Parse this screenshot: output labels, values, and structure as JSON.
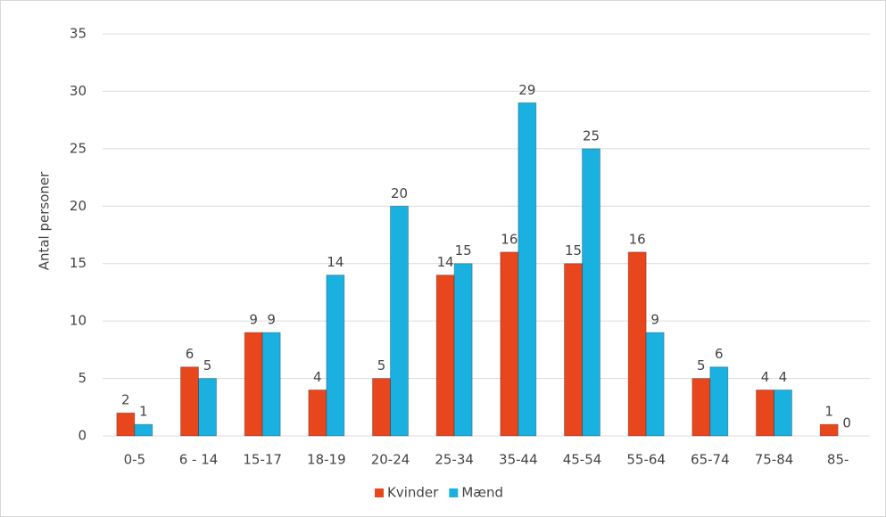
{
  "chart_data": {
    "type": "bar",
    "y_label": "Antal personer",
    "categories": [
      "0-5",
      "6 - 14",
      "15-17",
      "18-19",
      "20-24",
      "25-34",
      "35-44",
      "45-54",
      "55-64",
      "65-74",
      "75-84",
      "85-"
    ],
    "series": [
      {
        "name": "Kvinder",
        "color": "#e8461c",
        "values": [
          2,
          6,
          9,
          4,
          5,
          14,
          16,
          15,
          16,
          5,
          4,
          1
        ]
      },
      {
        "name": "Mænd",
        "color": "#1ab0e0",
        "values": [
          1,
          5,
          9,
          14,
          20,
          15,
          29,
          25,
          9,
          6,
          4,
          0
        ]
      }
    ],
    "ylim": [
      0,
      35
    ],
    "yticks": [
      0,
      5,
      10,
      15,
      20,
      25,
      30,
      35
    ],
    "grid": true,
    "legend": "bottom"
  }
}
